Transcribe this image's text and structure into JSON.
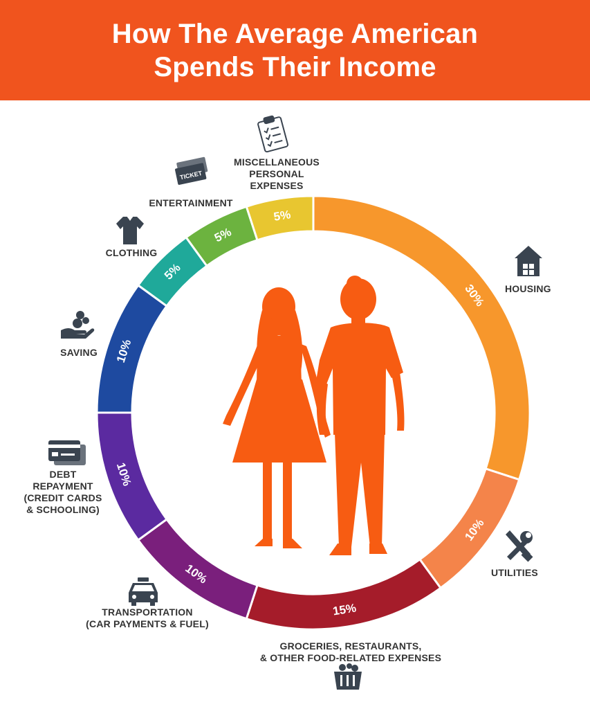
{
  "header": {
    "title_line1": "How The Average American",
    "title_line2": "Spends Their Income",
    "background": "#f0541e"
  },
  "chart_data": {
    "type": "pie",
    "variant": "donut",
    "categories": [
      "Housing",
      "Utilities",
      "Groceries, Restaurants, & Other Food-Related Expenses",
      "Transportation (Car Payments & Fuel)",
      "Debt Repayment (Credit Cards & Schooling)",
      "Saving",
      "Clothing",
      "Entertainment",
      "Miscellaneous Personal Expenses"
    ],
    "values": [
      30,
      10,
      15,
      10,
      10,
      10,
      5,
      5,
      5
    ],
    "value_labels": [
      "30%",
      "10%",
      "15%",
      "10%",
      "10%",
      "10%",
      "5%",
      "5%",
      "5%"
    ],
    "colors": [
      "#f7972c",
      "#f4844a",
      "#a51c2a",
      "#7a1f7c",
      "#5b2aa0",
      "#1e4aa0",
      "#1fa99a",
      "#6cb33f",
      "#e8c630"
    ],
    "start": "12 o'clock",
    "direction": "clockwise"
  },
  "labels": {
    "housing": "HOUSING",
    "utilities": "UTILITIES",
    "groceries": [
      "GROCERIES, RESTAURANTS,",
      "& OTHER FOOD-RELATED EXPENSES"
    ],
    "transportation": [
      "TRANSPORTATION",
      "(CAR PAYMENTS & FUEL)"
    ],
    "debt": [
      "DEBT",
      "REPAYMENT",
      "(CREDIT CARDS",
      "& SCHOOLING)"
    ],
    "saving": "SAVING",
    "clothing": "CLOTHING",
    "entertainment": "ENTERTAINMENT",
    "misc": [
      "MISCELLANEOUS",
      "PERSONAL",
      "EXPENSES"
    ],
    "ticket_text": "TICKET"
  },
  "icons": [
    "house-icon",
    "tools-icon",
    "shopping-basket-icon",
    "car-icon",
    "credit-card-icon",
    "saving-hand-icon",
    "shirt-icon",
    "ticket-icon",
    "clipboard-icon"
  ],
  "colors": {
    "figure": "#f75c12",
    "icon": "#3a4450",
    "label_text": "#333333"
  }
}
